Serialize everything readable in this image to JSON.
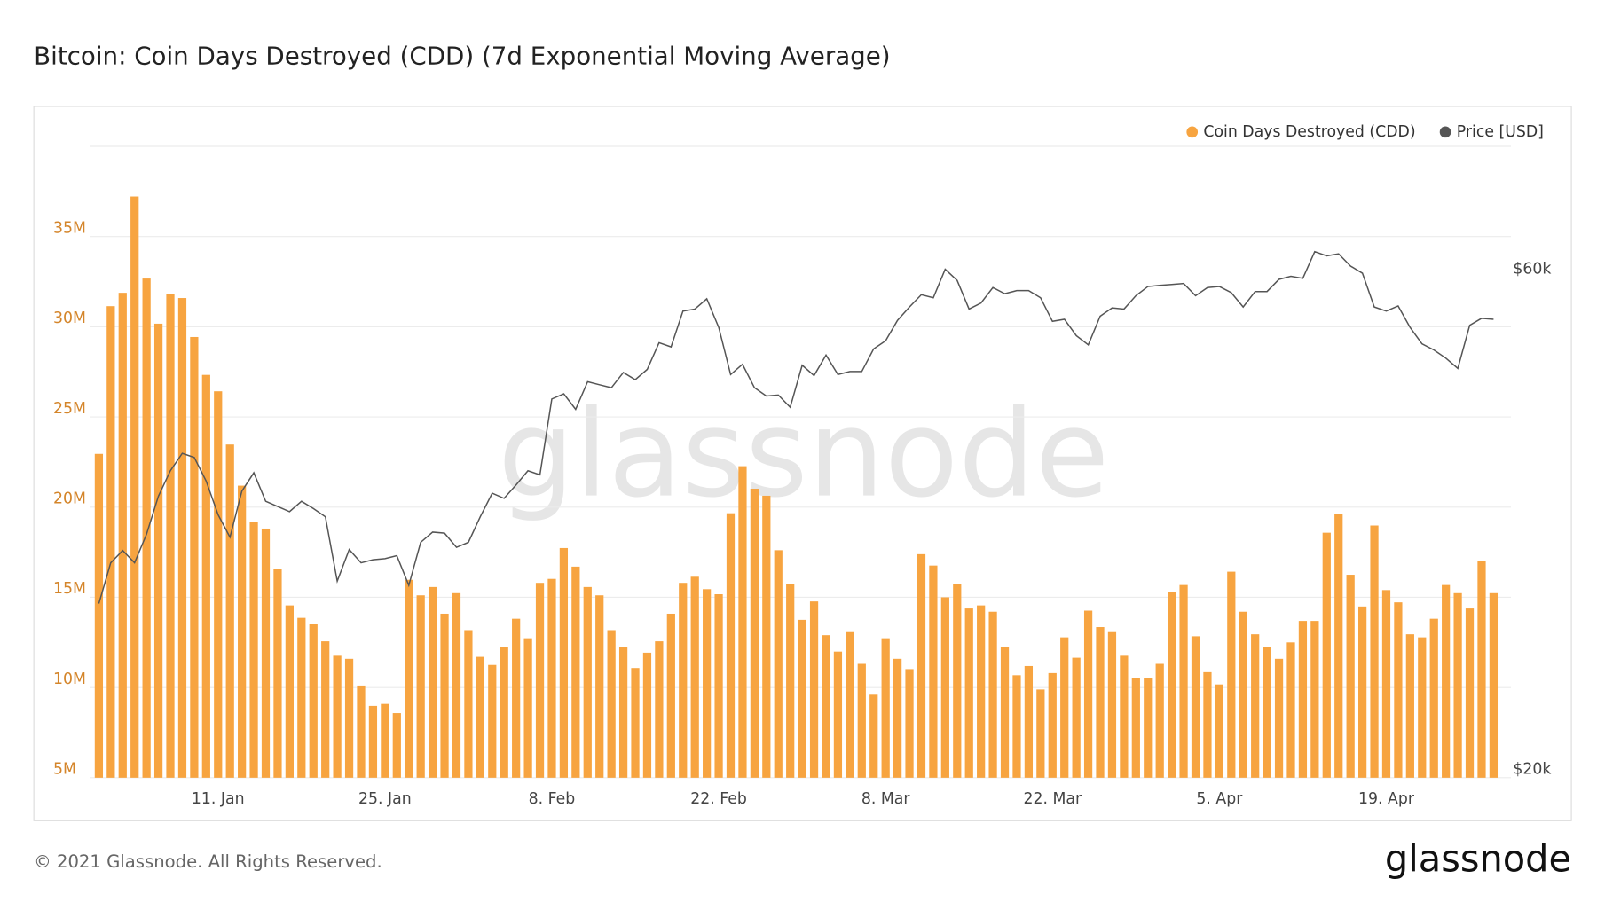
{
  "chart_data": {
    "type": "bar",
    "title": "Bitcoin: Coin Days Destroyed (CDD) (7d Exponential Moving Average)",
    "watermark": "glassnode",
    "footer": "© 2021 Glassnode. All Rights Reserved.",
    "logo": "glassnode",
    "x": [
      "1. Jan",
      "2. Jan",
      "3. Jan",
      "4. Jan",
      "5. Jan",
      "6. Jan",
      "7. Jan",
      "8. Jan",
      "9. Jan",
      "10. Jan",
      "11. Jan",
      "12. Jan",
      "13. Jan",
      "14. Jan",
      "15. Jan",
      "16. Jan",
      "17. Jan",
      "18. Jan",
      "19. Jan",
      "20. Jan",
      "21. Jan",
      "22. Jan",
      "23. Jan",
      "24. Jan",
      "25. Jan",
      "26. Jan",
      "27. Jan",
      "28. Jan",
      "29. Jan",
      "30. Jan",
      "31. Jan",
      "1. Feb",
      "2. Feb",
      "3. Feb",
      "4. Feb",
      "5. Feb",
      "6. Feb",
      "7. Feb",
      "8. Feb",
      "9. Feb",
      "10. Feb",
      "11. Feb",
      "12. Feb",
      "13. Feb",
      "14. Feb",
      "15. Feb",
      "16. Feb",
      "17. Feb",
      "18. Feb",
      "19. Feb",
      "20. Feb",
      "21. Feb",
      "22. Feb",
      "23. Feb",
      "24. Feb",
      "25. Feb",
      "26. Feb",
      "27. Feb",
      "28. Feb",
      "1. Mar",
      "2. Mar",
      "3. Mar",
      "4. Mar",
      "5. Mar",
      "6. Mar",
      "7. Mar",
      "8. Mar",
      "9. Mar",
      "10. Mar",
      "11. Mar",
      "12. Mar",
      "13. Mar",
      "14. Mar",
      "15. Mar",
      "16. Mar",
      "17. Mar",
      "18. Mar",
      "19. Mar",
      "20. Mar",
      "21. Mar",
      "22. Mar",
      "23. Mar",
      "24. Mar",
      "25. Mar",
      "26. Mar",
      "27. Mar",
      "28. Mar",
      "29. Mar",
      "30. Mar",
      "31. Mar",
      "1. Apr",
      "2. Apr",
      "3. Apr",
      "4. Apr",
      "5. Apr",
      "6. Apr",
      "7. Apr",
      "8. Apr",
      "9. Apr",
      "10. Apr",
      "11. Apr",
      "12. Apr",
      "13. Apr",
      "14. Apr",
      "15. Apr",
      "16. Apr",
      "17. Apr",
      "18. Apr",
      "19. Apr",
      "20. Apr",
      "21. Apr",
      "22. Apr",
      "23. Apr",
      "24. Apr",
      "25. Apr",
      "26. Apr",
      "27. Apr",
      "28. Apr"
    ],
    "xticks": [
      "11. Jan",
      "25. Jan",
      "8. Feb",
      "22. Feb",
      "8. Mar",
      "22. Mar",
      "5. Apr",
      "19. Apr"
    ],
    "series": [
      {
        "name": "Coin Days Destroyed (CDD)",
        "type": "bar",
        "color": "#f7a440",
        "values": [
          22950000,
          31140000,
          31880000,
          37220000,
          32670000,
          30170000,
          31820000,
          31590000,
          29430000,
          27330000,
          26420000,
          23470000,
          21190000,
          19200000,
          18810000,
          16590000,
          14550000,
          13860000,
          13520000,
          12560000,
          11760000,
          11590000,
          10110000,
          8980000,
          9090000,
          8580000,
          15970000,
          15110000,
          15570000,
          14090000,
          15230000,
          13180000,
          11700000,
          11250000,
          12220000,
          13810000,
          12730000,
          15800000,
          16020000,
          17730000,
          16700000,
          15570000,
          15110000,
          13180000,
          12220000,
          11080000,
          11930000,
          12560000,
          14090000,
          15800000,
          16140000,
          15450000,
          15170000,
          19660000,
          22270000,
          21020000,
          20630000,
          17610000,
          15740000,
          13750000,
          14770000,
          12900000,
          11990000,
          13070000,
          11310000,
          9600000,
          12730000,
          11590000,
          11020000,
          17390000,
          16760000,
          15000000,
          15740000,
          14380000,
          14550000,
          14200000,
          12270000,
          10680000,
          11190000,
          9890000,
          10800000,
          12780000,
          11650000,
          14260000,
          13350000,
          13070000,
          11760000,
          10510000,
          10510000,
          11310000,
          15280000,
          15680000,
          12840000,
          10850000,
          10170000,
          16420000,
          14200000,
          12950000,
          12220000,
          11590000,
          12500000,
          13690000,
          13690000,
          18580000,
          19600000,
          16250000,
          14490000,
          18980000,
          15400000,
          14720000,
          12950000,
          12780000,
          13810000,
          15680000,
          15230000,
          14380000,
          16990000,
          15230000
        ]
      },
      {
        "name": "Price [USD]",
        "type": "line",
        "axis": "y2",
        "color": "#555555",
        "values": [
          33910,
          37180,
          38160,
          37180,
          39470,
          42500,
          44540,
          45930,
          45600,
          43720,
          41020,
          39220,
          42900,
          44380,
          42090,
          41680,
          41270,
          42090,
          41510,
          40860,
          35710,
          38240,
          37180,
          37420,
          37510,
          37750,
          35380,
          38810,
          39630,
          39550,
          38410,
          38810,
          40860,
          42740,
          42330,
          43400,
          44540,
          44210,
          50270,
          50680,
          49450,
          51660,
          51410,
          51170,
          52390,
          51820,
          52640,
          54770,
          54440,
          57300,
          57460,
          58280,
          55990,
          52230,
          53050,
          51170,
          50510,
          50590,
          49610,
          52970,
          52150,
          53780,
          52230,
          52470,
          52470,
          54270,
          54930,
          56560,
          57630,
          58610,
          58360,
          60650,
          59750,
          57460,
          57950,
          59180,
          58690,
          58940,
          58940,
          58360,
          56480,
          56650,
          55340,
          54600,
          56890,
          57550,
          57460,
          58530,
          59260,
          59350,
          59430,
          59510,
          58530,
          59180,
          59260,
          58770,
          57630,
          58860,
          58860,
          59840,
          60080,
          59920,
          62050,
          61720,
          61880,
          60900,
          60330,
          57630,
          57300,
          57710,
          55990,
          54680,
          54190,
          53540,
          52720,
          56160,
          56730,
          56650
        ]
      }
    ],
    "ylim": [
      5000000,
      40000000
    ],
    "yticks": [
      {
        "value": 5000000,
        "label": "5M"
      },
      {
        "value": 10000000,
        "label": "10M"
      },
      {
        "value": 15000000,
        "label": "15M"
      },
      {
        "value": 20000000,
        "label": "20M"
      },
      {
        "value": 25000000,
        "label": "25M"
      },
      {
        "value": 30000000,
        "label": "30M"
      },
      {
        "value": 35000000,
        "label": "35M"
      }
    ],
    "y2lim": [
      20000,
      70470
    ],
    "y2ticks": [
      {
        "value": 20000,
        "label": "$20k"
      },
      {
        "value": 60000,
        "label": "$60k"
      }
    ],
    "grid": true,
    "legend": "top-right"
  }
}
